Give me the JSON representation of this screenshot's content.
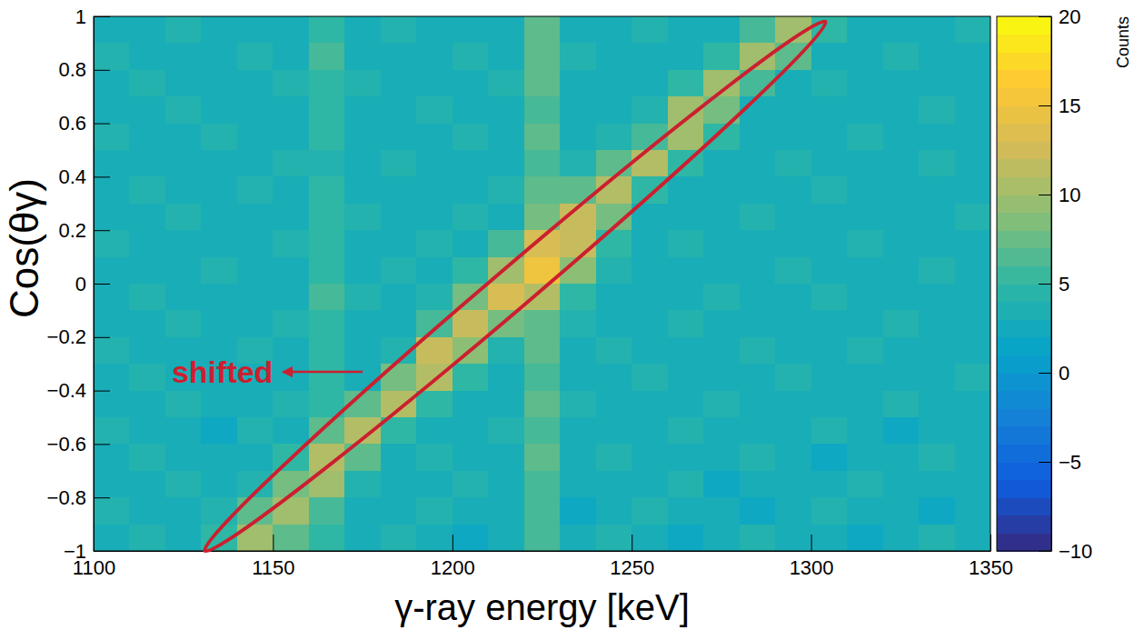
{
  "chart_data": {
    "type": "heatmap",
    "x_label": "γ-ray energy [keV]",
    "y_label": "Cos(θγ)",
    "colorbar_label": "Counts",
    "grid": false,
    "xlim": [
      1100,
      1350
    ],
    "ylim": [
      -1,
      1
    ],
    "xticks": [
      1100,
      1150,
      1200,
      1250,
      1300,
      1350
    ],
    "yticks": [
      {
        "value": -1,
        "label": "−1"
      },
      {
        "value": -0.8,
        "label": "−0.8"
      },
      {
        "value": -0.6,
        "label": "−0.6"
      },
      {
        "value": -0.4,
        "label": "−0.4"
      },
      {
        "value": -0.2,
        "label": "−0.2"
      },
      0,
      0.2,
      0.4,
      0.6,
      0.8,
      1
    ],
    "color_range": [
      -10,
      20
    ],
    "color_ticks": [
      {
        "value": -10,
        "label": "−10"
      },
      {
        "value": -5,
        "label": "−5"
      },
      0,
      5,
      10,
      15,
      20
    ],
    "x_bins": [
      1100,
      1110,
      1120,
      1130,
      1140,
      1150,
      1160,
      1170,
      1180,
      1190,
      1200,
      1210,
      1220,
      1230,
      1240,
      1250,
      1260,
      1270,
      1280,
      1290,
      1300,
      1310,
      1320,
      1330,
      1340,
      1350
    ],
    "y_bins": [
      -1,
      -0.9,
      -0.8,
      -0.7,
      -0.6,
      -0.5,
      -0.4,
      -0.3,
      -0.2,
      -0.1,
      0,
      0.1,
      0.2,
      0.3,
      0.4,
      0.5,
      0.6,
      0.7,
      0.8,
      0.9,
      1
    ],
    "cells": [
      [
        3,
        4,
        3,
        5,
        10,
        7,
        5,
        3,
        4,
        3,
        2,
        3,
        6,
        3,
        4,
        3,
        2,
        3,
        4,
        3,
        3,
        2,
        3,
        4,
        3
      ],
      [
        4,
        3,
        3,
        4,
        7,
        10,
        6,
        3,
        3,
        4,
        3,
        3,
        6,
        2,
        3,
        4,
        3,
        3,
        2,
        3,
        4,
        3,
        3,
        2,
        3
      ],
      [
        3,
        3,
        4,
        3,
        4,
        8,
        10,
        4,
        3,
        3,
        4,
        3,
        6,
        3,
        3,
        3,
        4,
        2,
        3,
        3,
        3,
        4,
        3,
        3,
        3
      ],
      [
        3,
        4,
        3,
        3,
        3,
        5,
        11,
        7,
        3,
        4,
        3,
        3,
        7,
        3,
        4,
        3,
        3,
        3,
        4,
        3,
        2,
        3,
        3,
        4,
        3
      ],
      [
        4,
        3,
        3,
        2,
        4,
        3,
        7,
        11,
        5,
        3,
        3,
        4,
        6,
        3,
        3,
        3,
        4,
        3,
        3,
        3,
        4,
        3,
        2,
        3,
        3
      ],
      [
        3,
        3,
        4,
        3,
        3,
        4,
        5,
        7,
        11,
        5,
        3,
        3,
        7,
        4,
        3,
        3,
        3,
        4,
        3,
        3,
        3,
        3,
        4,
        3,
        3
      ],
      [
        3,
        4,
        3,
        3,
        3,
        3,
        5,
        3,
        8,
        11,
        5,
        3,
        6,
        3,
        3,
        4,
        3,
        3,
        3,
        4,
        3,
        3,
        3,
        3,
        4
      ],
      [
        4,
        3,
        3,
        3,
        4,
        3,
        5,
        3,
        4,
        12,
        9,
        4,
        7,
        3,
        4,
        3,
        3,
        3,
        4,
        3,
        3,
        4,
        3,
        3,
        3
      ],
      [
        3,
        3,
        4,
        3,
        3,
        4,
        5,
        3,
        3,
        6,
        12,
        8,
        7,
        4,
        3,
        3,
        4,
        3,
        3,
        3,
        3,
        3,
        4,
        3,
        3
      ],
      [
        3,
        4,
        3,
        3,
        3,
        3,
        6,
        4,
        3,
        4,
        8,
        13,
        11,
        5,
        3,
        3,
        3,
        4,
        3,
        3,
        4,
        3,
        3,
        3,
        3
      ],
      [
        3,
        3,
        3,
        4,
        3,
        3,
        5,
        3,
        4,
        3,
        5,
        10,
        15,
        9,
        4,
        3,
        3,
        3,
        3,
        4,
        3,
        3,
        3,
        4,
        3
      ],
      [
        4,
        3,
        3,
        3,
        3,
        4,
        5,
        3,
        3,
        4,
        3,
        6,
        13,
        12,
        5,
        3,
        4,
        3,
        3,
        3,
        3,
        4,
        3,
        3,
        3
      ],
      [
        3,
        3,
        4,
        3,
        3,
        3,
        5,
        4,
        3,
        3,
        4,
        3,
        8,
        12,
        8,
        3,
        3,
        3,
        4,
        3,
        3,
        3,
        3,
        3,
        4
      ],
      [
        3,
        4,
        3,
        3,
        4,
        3,
        5,
        3,
        3,
        3,
        3,
        4,
        7,
        7,
        11,
        5,
        3,
        3,
        3,
        3,
        4,
        3,
        3,
        3,
        3
      ],
      [
        3,
        3,
        3,
        3,
        3,
        4,
        4,
        3,
        4,
        3,
        3,
        3,
        6,
        4,
        7,
        11,
        5,
        3,
        3,
        4,
        3,
        3,
        3,
        4,
        3
      ],
      [
        4,
        3,
        3,
        4,
        3,
        3,
        5,
        3,
        3,
        3,
        4,
        3,
        7,
        3,
        4,
        6,
        10,
        5,
        3,
        3,
        3,
        4,
        3,
        3,
        3
      ],
      [
        3,
        3,
        4,
        3,
        3,
        3,
        5,
        3,
        3,
        4,
        3,
        3,
        6,
        3,
        3,
        4,
        10,
        8,
        3,
        3,
        3,
        3,
        3,
        4,
        3
      ],
      [
        3,
        4,
        3,
        3,
        3,
        4,
        5,
        4,
        3,
        3,
        3,
        4,
        7,
        3,
        3,
        3,
        5,
        10,
        6,
        3,
        4,
        3,
        3,
        3,
        3
      ],
      [
        4,
        3,
        3,
        3,
        4,
        3,
        6,
        3,
        3,
        3,
        4,
        3,
        7,
        4,
        3,
        3,
        3,
        5,
        10,
        7,
        3,
        3,
        4,
        3,
        3
      ],
      [
        3,
        3,
        4,
        3,
        3,
        3,
        5,
        3,
        4,
        3,
        3,
        3,
        7,
        3,
        3,
        4,
        3,
        3,
        6,
        10,
        5,
        3,
        3,
        3,
        4
      ]
    ],
    "annotations": [
      {
        "text": "shifted",
        "color": "#cc1f2f",
        "x": 1150,
        "y": -0.33,
        "arrow": [
          [
            1175,
            -0.33
          ],
          [
            1153,
            -0.33
          ]
        ],
        "ellipse": {
          "x": [
            1131,
            1304
          ],
          "y": [
            -1,
            0.98
          ]
        }
      }
    ]
  }
}
